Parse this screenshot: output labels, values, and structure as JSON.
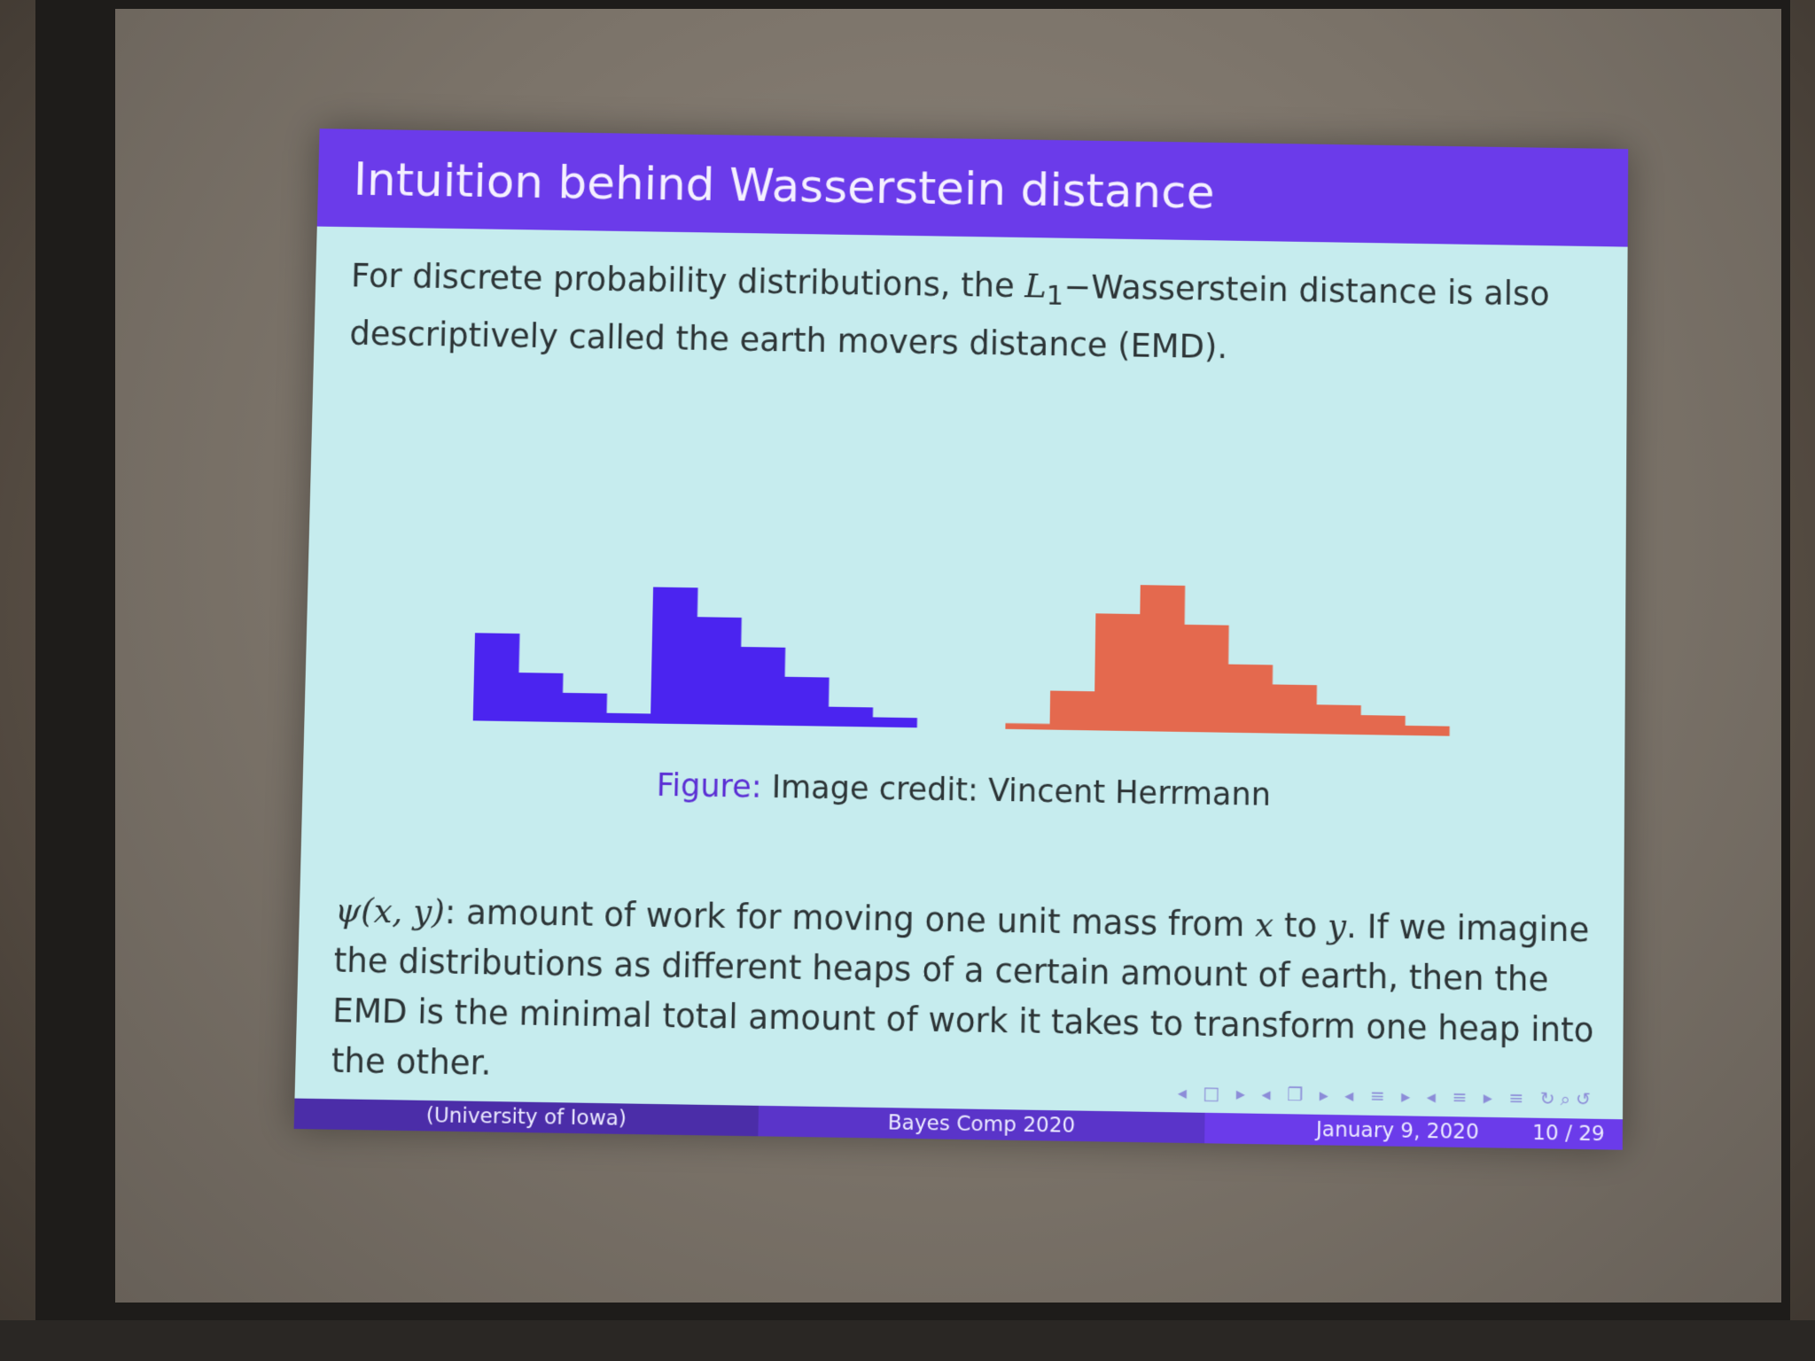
{
  "slide": {
    "title": "Intuition behind Wasserstein distance",
    "intro_part1": "For discrete probability distributions, the ",
    "intro_math": "L",
    "intro_sub": "1",
    "intro_part2": "−Wasserstein distance is also descriptively called the earth movers distance (EMD).",
    "caption_label": "Figure:",
    "caption_text": " Image credit:  Vincent Herrmann",
    "body_math": "ψ(x, y)",
    "body_part1": ": amount of work for moving one unit mass from ",
    "body_x": "x",
    "body_to": " to ",
    "body_y": "y",
    "body_part2": ". If we imagine the distributions as different heaps of a certain amount of earth, then the EMD is the minimal total amount of work it takes to transform one heap into the other.",
    "nav_symbols": "◂ □ ▸  ◂ ❐ ▸  ◂ ≡ ▸  ◂ ≡ ▸   ≡   ↻⌕↺"
  },
  "footer": {
    "institution": "(University of Iowa)",
    "event": "Bayes Comp 2020",
    "date": "January 9, 2020",
    "page": "10 / 29"
  },
  "colors": {
    "left_heap": "#4b24f0",
    "right_heap": "#e4694e",
    "title_bar": "#6b3bea",
    "slide_bg": "#c6ecee"
  },
  "figure": {
    "left_heap_heights": [
      4.5,
      2.5,
      1.5,
      0.5,
      7,
      5.5,
      4,
      2.5,
      1,
      0.5
    ],
    "right_heap_heights": [
      0.3,
      2,
      6,
      7.5,
      5.5,
      3.5,
      2.5,
      1.5,
      1,
      0.5
    ]
  }
}
